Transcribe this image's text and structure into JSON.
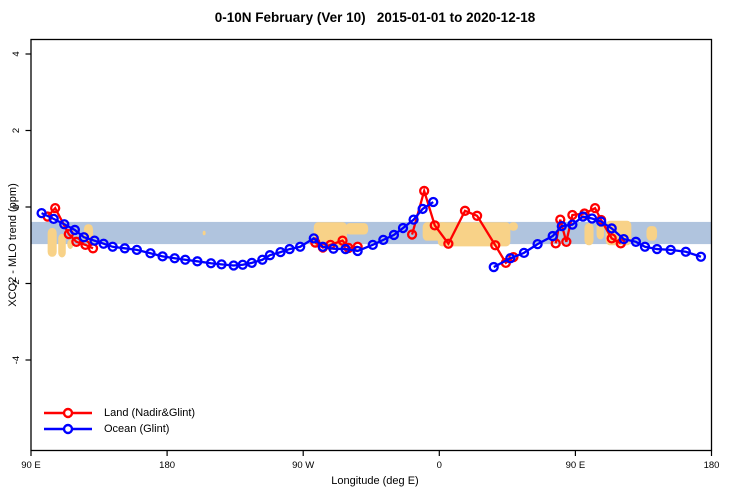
{
  "chart_data": {
    "type": "line",
    "title": "0-10N February (Ver 10)   2015-01-01 to 2020-12-18",
    "xlabel": "Longitude (deg E)",
    "ylabel": "XCO2 - MLO trend (ppm)",
    "x_axis": {
      "range_plot_degrees": [
        90,
        540
      ],
      "ticks": [
        {
          "lon": 90,
          "label": "90 E"
        },
        {
          "lon": 180,
          "label": "180"
        },
        {
          "lon": 270,
          "label": "90 W"
        },
        {
          "lon": 360,
          "label": "0"
        },
        {
          "lon": 450,
          "label": "90 E"
        },
        {
          "lon": 540,
          "label": "180"
        }
      ]
    },
    "y_axis": {
      "range": [
        -6.4,
        4.4
      ],
      "ticks": [
        {
          "v": 4,
          "label": "4"
        },
        {
          "v": 2,
          "label": "2"
        },
        {
          "v": 0,
          "label": "0"
        },
        {
          "v": -2,
          "label": "-2"
        },
        {
          "v": -4,
          "label": "-4"
        }
      ]
    },
    "reference_band": {
      "v_top": -0.39,
      "v_bottom": -0.97,
      "color": "#b0c4de"
    },
    "land_shading_color": "#f8d288",
    "land_shading": [
      {
        "lon0": 101,
        "lon1": 107,
        "v_top": -0.55,
        "v_bot": -1.3
      },
      {
        "lon0": 108,
        "lon1": 113,
        "v_top": -0.7,
        "v_bot": -1.32
      },
      {
        "lon0": 114,
        "lon1": 118,
        "v_top": -0.85,
        "v_bot": -1.1
      },
      {
        "lon0": 125,
        "lon1": 131,
        "v_top": -0.45,
        "v_bot": -0.95
      },
      {
        "lon0": 203.5,
        "lon1": 205.5,
        "v_top": -0.62,
        "v_bot": -0.74
      },
      {
        "lon0": 277,
        "lon1": 299,
        "v_top": -0.4,
        "v_bot": -1.05
      },
      {
        "lon0": 298,
        "lon1": 313,
        "v_top": -0.42,
        "v_bot": -0.72
      },
      {
        "lon0": 349,
        "lon1": 366,
        "v_top": -0.4,
        "v_bot": -0.88
      },
      {
        "lon0": 359,
        "lon1": 407,
        "v_top": -0.4,
        "v_bot": -1.03
      },
      {
        "lon0": 406,
        "lon1": 412,
        "v_top": -0.4,
        "v_bot": -0.62
      },
      {
        "lon0": 456,
        "lon1": 462,
        "v_top": -0.42,
        "v_bot": -1.0
      },
      {
        "lon0": 464,
        "lon1": 469,
        "v_top": -0.38,
        "v_bot": -0.85
      },
      {
        "lon0": 470,
        "lon1": 487,
        "v_top": -0.36,
        "v_bot": -1.0
      },
      {
        "lon0": 497,
        "lon1": 504,
        "v_top": -0.5,
        "v_bot": -0.88
      }
    ],
    "series": [
      {
        "name": "Land (Nadir&Glint)",
        "color": "#ff0000",
        "segments": [
          [
            [
              101,
              -0.25
            ],
            [
              106,
              -0.03
            ],
            [
              115,
              -0.71
            ],
            [
              120,
              -0.91
            ],
            [
              126,
              -0.99
            ],
            [
              131,
              -1.08
            ]
          ],
          [
            [
              278,
              -0.93
            ],
            [
              283,
              -1.06
            ],
            [
              288,
              -0.99
            ],
            [
              296,
              -0.88
            ],
            [
              300,
              -1.07
            ],
            [
              306,
              -1.04
            ]
          ],
          [
            [
              342,
              -0.72
            ],
            [
              350,
              0.42
            ],
            [
              357,
              -0.48
            ],
            [
              366,
              -0.96
            ],
            [
              377,
              -0.1
            ],
            [
              385,
              -0.23
            ],
            [
              397,
              -1.0
            ],
            [
              404,
              -1.46
            ],
            [
              409,
              -1.31
            ]
          ],
          [
            [
              437,
              -0.95
            ],
            [
              440,
              -0.33
            ],
            [
              444,
              -0.91
            ],
            [
              448,
              -0.21
            ],
            [
              456,
              -0.17
            ],
            [
              463,
              -0.03
            ],
            [
              467,
              -0.34
            ],
            [
              474,
              -0.82
            ],
            [
              480,
              -0.95
            ]
          ]
        ]
      },
      {
        "name": "Ocean (Glint)",
        "color": "#0000ff",
        "segments": [
          [
            [
              97,
              -0.16
            ],
            [
              105,
              -0.31
            ],
            [
              112,
              -0.45
            ],
            [
              119,
              -0.6
            ],
            [
              125,
              -0.79
            ],
            [
              132,
              -0.88
            ],
            [
              138,
              -0.96
            ],
            [
              144,
              -1.04
            ],
            [
              152,
              -1.08
            ],
            [
              160,
              -1.12
            ],
            [
              169,
              -1.21
            ],
            [
              177,
              -1.29
            ],
            [
              185,
              -1.34
            ],
            [
              192,
              -1.38
            ],
            [
              200,
              -1.42
            ],
            [
              209,
              -1.47
            ],
            [
              216,
              -1.5
            ],
            [
              224,
              -1.53
            ],
            [
              230,
              -1.51
            ],
            [
              236,
              -1.46
            ],
            [
              243,
              -1.38
            ],
            [
              248,
              -1.26
            ],
            [
              255,
              -1.18
            ],
            [
              261,
              -1.1
            ],
            [
              268,
              -1.04
            ],
            [
              277,
              -0.82
            ],
            [
              283,
              -1.04
            ],
            [
              290,
              -1.09
            ],
            [
              298,
              -1.1
            ],
            [
              306,
              -1.15
            ],
            [
              316,
              -0.99
            ],
            [
              323,
              -0.86
            ],
            [
              330,
              -0.73
            ],
            [
              336,
              -0.55
            ],
            [
              343,
              -0.33
            ],
            [
              349,
              -0.05
            ],
            [
              356,
              0.13
            ]
          ],
          [
            [
              396,
              -1.57
            ],
            [
              407,
              -1.34
            ],
            [
              416,
              -1.2
            ],
            [
              425,
              -0.97
            ],
            [
              435,
              -0.76
            ],
            [
              441,
              -0.5
            ],
            [
              448,
              -0.46
            ],
            [
              455,
              -0.25
            ],
            [
              461,
              -0.3
            ],
            [
              467,
              -0.38
            ],
            [
              474,
              -0.56
            ],
            [
              482,
              -0.84
            ],
            [
              490,
              -0.91
            ],
            [
              496,
              -1.04
            ],
            [
              504,
              -1.1
            ],
            [
              513,
              -1.12
            ],
            [
              523,
              -1.17
            ],
            [
              533,
              -1.3
            ]
          ]
        ]
      }
    ]
  }
}
